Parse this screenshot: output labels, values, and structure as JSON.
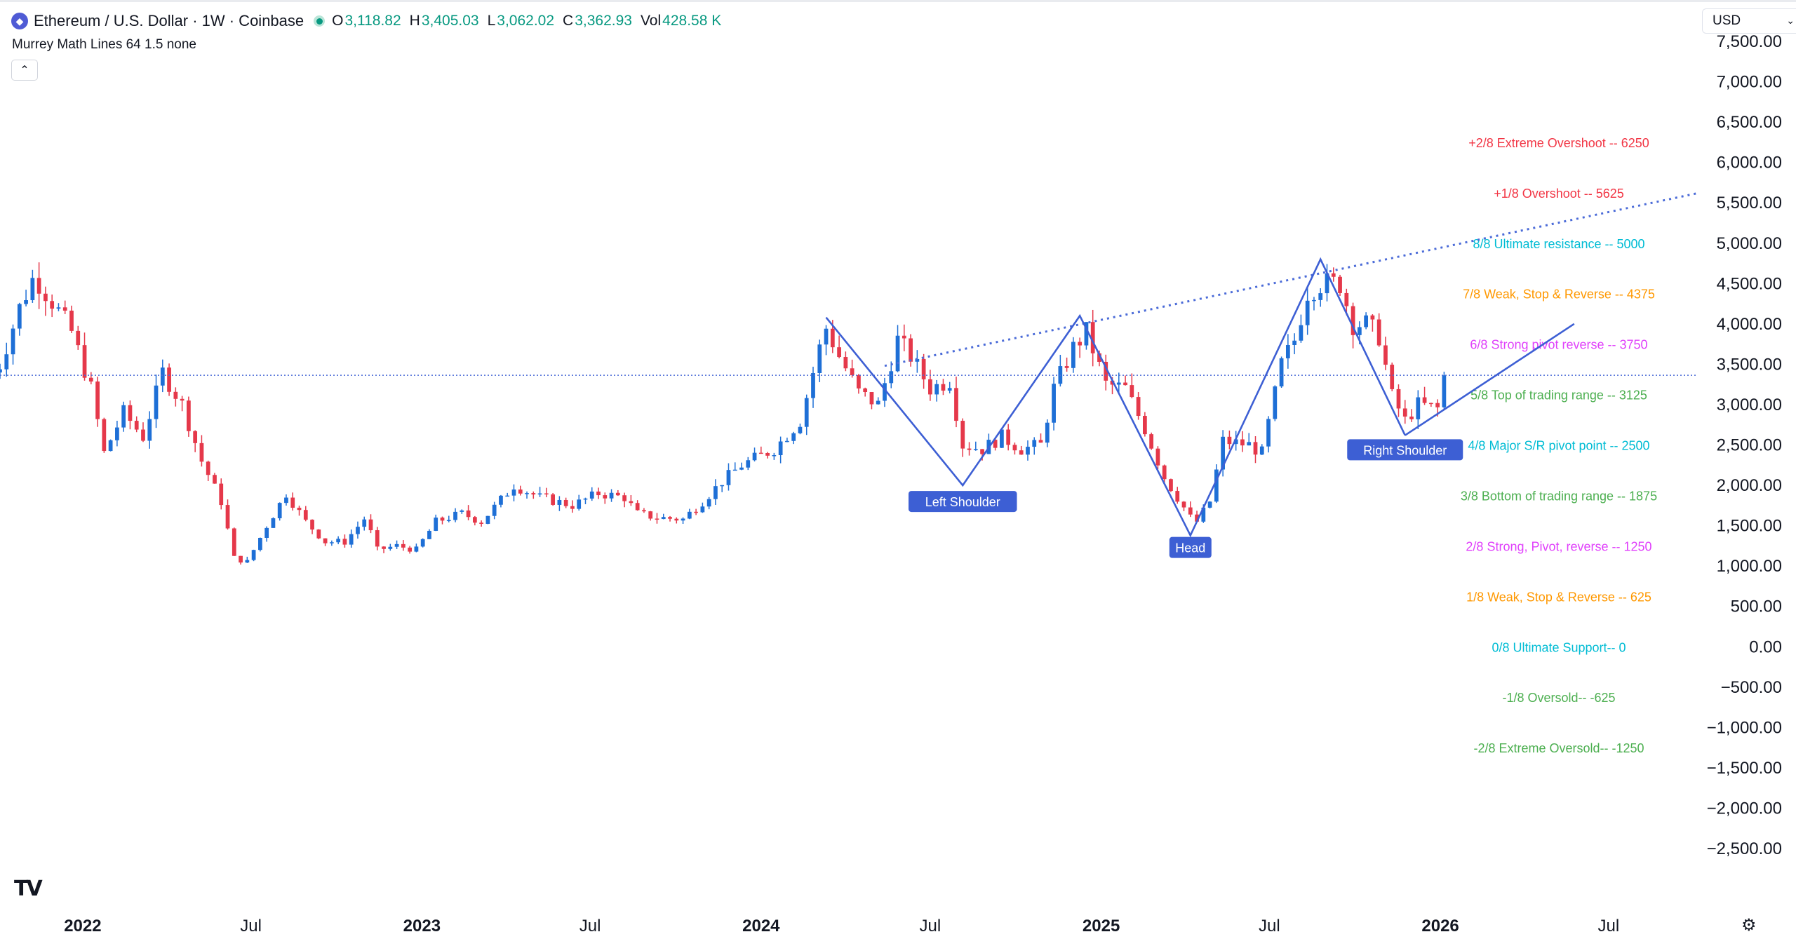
{
  "legend": {
    "symbol": "Ethereum / U.S. Dollar · 1W · Coinbase",
    "open_label": "O",
    "open": "3,118.82",
    "high_label": "H",
    "high": "3,405.03",
    "low_label": "L",
    "low": "3,062.02",
    "close_label": "C",
    "close": "3,362.93",
    "vol_label": "Vol",
    "volume": "428.58 K",
    "indicator": "Murrey Math Lines 64 1.5 none"
  },
  "currency": {
    "selected": "USD"
  },
  "colors": {
    "up": "#1e6fd6",
    "down": "#e5384a",
    "pattern": "#3d5fd4",
    "reference": "#4b6bd8",
    "overshoot": "#f23645",
    "ultimate": "#00bcd4",
    "weak": "#ff9800",
    "pivot": "#e040fb",
    "range": "#4caf50"
  },
  "icons": {
    "symbol": "ethereum-logo-icon",
    "status": "live-dot-icon",
    "collapse": "chevron-up-icon",
    "brand": "tradingview-logo-icon",
    "settings": "gear-icon"
  },
  "chart_data": {
    "type": "candlestick",
    "title": "Ethereum / U.S. Dollar · 1W · Coinbase",
    "y_range": [
      -2700,
      7700
    ],
    "y_ticks": [
      7500,
      7000,
      6500,
      6000,
      5500,
      5000,
      4500,
      4000,
      3500,
      3000,
      2500,
      2000,
      1500,
      1000,
      500,
      0,
      -500,
      -1000,
      -1500,
      -2000,
      -2500
    ],
    "y_tick_labels": [
      "7,500.00",
      "7,000.00",
      "6,500.00",
      "6,000.00",
      "5,500.00",
      "5,000.00",
      "4,500.00",
      "4,000.00",
      "3,500.00",
      "3,000.00",
      "2,500.00",
      "2,000.00",
      "1,500.00",
      "1,000.00",
      "500.00",
      "0.00",
      "−500.00",
      "−1,000.00",
      "−1,500.00",
      "−2,000.00",
      "−2,500.00"
    ],
    "x_range": [
      "2021-10-04",
      "2026-10-05"
    ],
    "x_ticks": [
      {
        "date": "2022-01-01",
        "label": "2022",
        "bold": true
      },
      {
        "date": "2022-07-01",
        "label": "Jul",
        "bold": false
      },
      {
        "date": "2023-01-01",
        "label": "2023",
        "bold": true
      },
      {
        "date": "2023-07-01",
        "label": "Jul",
        "bold": false
      },
      {
        "date": "2024-01-01",
        "label": "2024",
        "bold": true
      },
      {
        "date": "2024-07-01",
        "label": "Jul",
        "bold": false
      },
      {
        "date": "2025-01-01",
        "label": "2025",
        "bold": true
      },
      {
        "date": "2025-07-01",
        "label": "Jul",
        "bold": false
      },
      {
        "date": "2026-01-01",
        "label": "2026",
        "bold": true
      },
      {
        "date": "2026-07-01",
        "label": "Jul",
        "bold": false
      }
    ],
    "first_week": "2021-09-27",
    "weeks": 224,
    "close_anchors": [
      [
        "2021-10-01",
        3400
      ],
      [
        "2021-10-25",
        4200
      ],
      [
        "2021-11-10",
        4600
      ],
      [
        "2021-11-28",
        4300
      ],
      [
        "2021-12-20",
        3900
      ],
      [
        "2022-01-10",
        3200
      ],
      [
        "2022-01-24",
        2400
      ],
      [
        "2022-02-14",
        2900
      ],
      [
        "2022-03-07",
        2600
      ],
      [
        "2022-03-28",
        3400
      ],
      [
        "2022-04-18",
        3000
      ],
      [
        "2022-05-09",
        2300
      ],
      [
        "2022-05-30",
        1800
      ],
      [
        "2022-06-13",
        1100
      ],
      [
        "2022-06-27",
        1050
      ],
      [
        "2022-07-18",
        1500
      ],
      [
        "2022-08-08",
        1900
      ],
      [
        "2022-08-29",
        1550
      ],
      [
        "2022-09-19",
        1300
      ],
      [
        "2022-10-10",
        1300
      ],
      [
        "2022-11-01",
        1600
      ],
      [
        "2022-11-14",
        1200
      ],
      [
        "2022-12-05",
        1250
      ],
      [
        "2022-12-26",
        1200
      ],
      [
        "2023-01-16",
        1550
      ],
      [
        "2023-02-13",
        1650
      ],
      [
        "2023-03-06",
        1550
      ],
      [
        "2023-04-10",
        2000
      ],
      [
        "2023-05-08",
        1850
      ],
      [
        "2023-06-12",
        1750
      ],
      [
        "2023-07-10",
        1900
      ],
      [
        "2023-08-07",
        1850
      ],
      [
        "2023-08-21",
        1650
      ],
      [
        "2023-09-11",
        1600
      ],
      [
        "2023-10-09",
        1580
      ],
      [
        "2023-10-30",
        1800
      ],
      [
        "2023-11-20",
        2050
      ],
      [
        "2023-12-11",
        2250
      ],
      [
        "2024-01-15",
        2450
      ],
      [
        "2024-02-12",
        2800
      ],
      [
        "2024-03-04",
        3700
      ],
      [
        "2024-03-11",
        3950
      ],
      [
        "2024-03-25",
        3600
      ],
      [
        "2024-04-15",
        3150
      ],
      [
        "2024-05-06",
        3000
      ],
      [
        "2024-05-27",
        3800
      ],
      [
        "2024-06-10",
        3600
      ],
      [
        "2024-07-01",
        3200
      ],
      [
        "2024-07-22",
        3300
      ],
      [
        "2024-08-05",
        2500
      ],
      [
        "2024-08-26",
        2450
      ],
      [
        "2024-09-16",
        2600
      ],
      [
        "2024-10-07",
        2450
      ],
      [
        "2024-10-28",
        2500
      ],
      [
        "2024-11-11",
        3200
      ],
      [
        "2024-12-02",
        3700
      ],
      [
        "2024-12-16",
        3900
      ],
      [
        "2025-01-06",
        3250
      ],
      [
        "2025-01-27",
        3200
      ],
      [
        "2025-02-17",
        2700
      ],
      [
        "2025-03-10",
        2100
      ],
      [
        "2025-04-07",
        1600
      ],
      [
        "2025-04-14",
        1550
      ],
      [
        "2025-04-28",
        1800
      ],
      [
        "2025-05-12",
        2550
      ],
      [
        "2025-06-09",
        2500
      ],
      [
        "2025-06-23",
        2400
      ],
      [
        "2025-07-14",
        3500
      ],
      [
        "2025-07-28",
        3800
      ],
      [
        "2025-08-11",
        4400
      ],
      [
        "2025-08-25",
        4500
      ],
      [
        "2025-09-15",
        4500
      ],
      [
        "2025-09-29",
        4000
      ],
      [
        "2025-10-13",
        4000
      ],
      [
        "2025-10-27",
        3850
      ],
      [
        "2025-11-10",
        3100
      ],
      [
        "2025-11-24",
        2800
      ],
      [
        "2025-12-08",
        3000
      ],
      [
        "2025-12-29",
        2950
      ],
      [
        "2026-01-12",
        3363
      ]
    ],
    "current_price": 3362.93,
    "murrey_lines": [
      {
        "text": "+2/8 Extreme Overshoot --  6250",
        "value": 6250,
        "color": "#f23645"
      },
      {
        "text": "+1/8 Overshoot --  5625",
        "value": 5625,
        "color": "#f23645"
      },
      {
        "text": "8/8 Ultimate resistance --  5000",
        "value": 5000,
        "color": "#00bcd4"
      },
      {
        "text": "7/8 Weak, Stop & Reverse --  4375",
        "value": 4375,
        "color": "#ff9800"
      },
      {
        "text": "6/8 Strong pivot reverse --  3750",
        "value": 3750,
        "color": "#e040fb"
      },
      {
        "text": "5/8 Top of trading range --  3125",
        "value": 3125,
        "color": "#4caf50"
      },
      {
        "text": "4/8 Major S/R pivot point --  2500",
        "value": 2500,
        "color": "#00bcd4"
      },
      {
        "text": "3/8 Bottom of trading range --  1875",
        "value": 1875,
        "color": "#4caf50"
      },
      {
        "text": "2/8 Strong, Pivot, reverse --  1250",
        "value": 1250,
        "color": "#e040fb"
      },
      {
        "text": "1/8 Weak, Stop & Reverse --  625",
        "value": 625,
        "color": "#ff9800"
      },
      {
        "text": "0/8 Ultimate Support--  0",
        "value": 0,
        "color": "#00bcd4"
      },
      {
        "text": "-1/8 Oversold--  -625",
        "value": -625,
        "color": "#4caf50"
      },
      {
        "text": "-2/8 Extreme Oversold--  -1250",
        "value": -1250,
        "color": "#4caf50"
      }
    ],
    "pattern_path": [
      [
        "2024-03-11",
        4080
      ],
      [
        "2024-08-05",
        2000
      ],
      [
        "2024-12-09",
        4100
      ],
      [
        "2025-04-07",
        1380
      ],
      [
        "2025-08-25",
        4800
      ],
      [
        "2025-11-24",
        2620
      ]
    ],
    "uptrend_line": [
      [
        "2025-11-24",
        2620
      ],
      [
        "2026-05-25",
        4000
      ]
    ],
    "trendline_dotted": [
      [
        "2024-05-13",
        3480
      ],
      [
        "2026-10-05",
        5620
      ]
    ],
    "annotations": [
      {
        "text": "Left Shoulder",
        "date": "2024-08-05",
        "price": 1800
      },
      {
        "text": "Head",
        "date": "2025-04-07",
        "price": 1230
      },
      {
        "text": "Right Shoulder",
        "date": "2025-11-24",
        "price": 2440
      }
    ]
  }
}
